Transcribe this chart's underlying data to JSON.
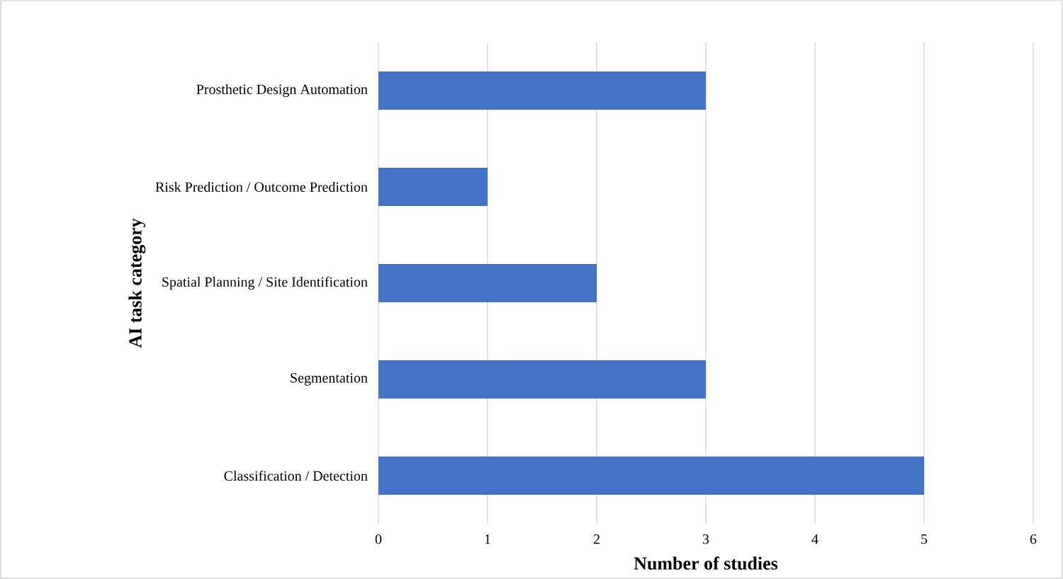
{
  "chart_data": {
    "type": "bar",
    "orientation": "horizontal",
    "xlabel": "Number of studies",
    "ylabel": "AI task category",
    "categories": [
      "Prosthetic Design Automation",
      "Risk Prediction / Outcome Prediction",
      "Spatial Planning / Site Identification",
      "Segmentation",
      "Classification / Detection"
    ],
    "values": [
      3,
      1,
      2,
      3,
      5
    ],
    "color": "#4472c4",
    "xlim": [
      0,
      6
    ],
    "xticks": [
      0,
      1,
      2,
      3,
      4,
      5,
      6
    ],
    "grid": "x"
  }
}
